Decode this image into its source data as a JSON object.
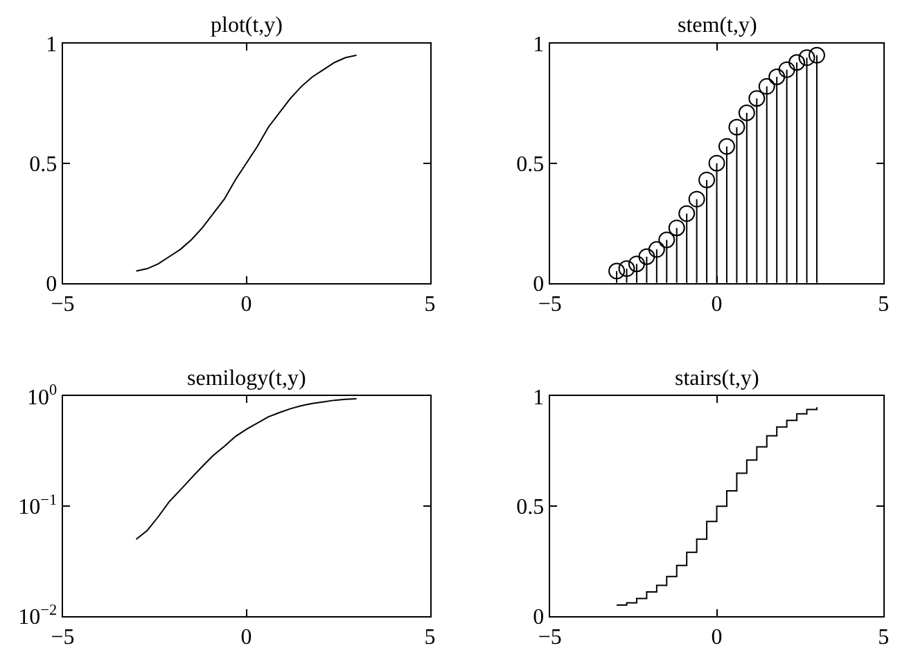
{
  "chart_data": [
    {
      "type": "line",
      "title": "plot(t,y)",
      "x": [
        -3,
        -2.7,
        -2.4,
        -2.1,
        -1.8,
        -1.5,
        -1.2,
        -0.9,
        -0.6,
        -0.3,
        0,
        0.3,
        0.6,
        0.9,
        1.2,
        1.5,
        1.8,
        2.1,
        2.4,
        2.7,
        3
      ],
      "series": [
        {
          "color": "#000000",
          "values": [
            0.05,
            0.06,
            0.08,
            0.11,
            0.14,
            0.18,
            0.23,
            0.29,
            0.35,
            0.43,
            0.5,
            0.57,
            0.65,
            0.71,
            0.77,
            0.82,
            0.86,
            0.89,
            0.92,
            0.94,
            0.95
          ]
        }
      ],
      "xlim": [
        -5,
        5
      ],
      "xticks": [
        -5,
        0,
        5
      ],
      "ylim": [
        0,
        1
      ],
      "yticks": [
        0,
        0.5,
        1
      ],
      "grid": false,
      "legend": false,
      "marker": "none",
      "line_style": "solid"
    },
    {
      "type": "lollipop",
      "title": "stem(t,y)",
      "x": [
        -3,
        -2.7,
        -2.4,
        -2.1,
        -1.8,
        -1.5,
        -1.2,
        -0.9,
        -0.6,
        -0.3,
        0,
        0.3,
        0.6,
        0.9,
        1.2,
        1.5,
        1.8,
        2.1,
        2.4,
        2.7,
        3
      ],
      "series": [
        {
          "color": "#000000",
          "values": [
            0.05,
            0.06,
            0.08,
            0.11,
            0.14,
            0.18,
            0.23,
            0.29,
            0.35,
            0.43,
            0.5,
            0.57,
            0.65,
            0.71,
            0.77,
            0.82,
            0.86,
            0.89,
            0.92,
            0.94,
            0.95
          ]
        }
      ],
      "xlim": [
        -5,
        5
      ],
      "xticks": [
        -5,
        0,
        5
      ],
      "ylim": [
        0,
        1
      ],
      "yticks": [
        0,
        0.5,
        1
      ],
      "grid": false,
      "legend": false,
      "marker": "circle"
    },
    {
      "type": "line",
      "title": "semilogy(t,y)",
      "x": [
        -3,
        -2.7,
        -2.4,
        -2.1,
        -1.8,
        -1.5,
        -1.2,
        -0.9,
        -0.6,
        -0.3,
        0,
        0.3,
        0.6,
        0.9,
        1.2,
        1.5,
        1.8,
        2.1,
        2.4,
        2.7,
        3
      ],
      "series": [
        {
          "color": "#000000",
          "values": [
            0.05,
            0.06,
            0.08,
            0.11,
            0.14,
            0.18,
            0.23,
            0.29,
            0.35,
            0.43,
            0.5,
            0.57,
            0.65,
            0.71,
            0.77,
            0.82,
            0.86,
            0.89,
            0.92,
            0.94,
            0.95
          ]
        }
      ],
      "xlim": [
        -5,
        5
      ],
      "xticks": [
        -5,
        0,
        5
      ],
      "ylim": [
        0.01,
        1
      ],
      "yticks": [
        {
          "value": 0.01,
          "label": "10$^{−2}$"
        },
        {
          "value": 0.1,
          "label": "10$^{−1}$"
        },
        {
          "value": 1,
          "label": "10$^{0}$"
        }
      ],
      "log": "y",
      "grid": false,
      "legend": false,
      "marker": "none",
      "line_style": "solid"
    },
    {
      "type": "step",
      "title": "stairs(t,y)",
      "x": [
        -3,
        -2.7,
        -2.4,
        -2.1,
        -1.8,
        -1.5,
        -1.2,
        -0.9,
        -0.6,
        -0.3,
        0,
        0.3,
        0.6,
        0.9,
        1.2,
        1.5,
        1.8,
        2.1,
        2.4,
        2.7,
        3
      ],
      "series": [
        {
          "color": "#000000",
          "values": [
            0.05,
            0.06,
            0.08,
            0.11,
            0.14,
            0.18,
            0.23,
            0.29,
            0.35,
            0.43,
            0.5,
            0.57,
            0.65,
            0.71,
            0.77,
            0.82,
            0.86,
            0.89,
            0.92,
            0.94,
            0.95
          ]
        }
      ],
      "xlim": [
        -5,
        5
      ],
      "xticks": [
        -5,
        0,
        5
      ],
      "ylim": [
        0,
        1
      ],
      "yticks": [
        0,
        0.5,
        1
      ],
      "grid": false,
      "legend": false,
      "marker": "none",
      "line_style": "solid"
    }
  ]
}
